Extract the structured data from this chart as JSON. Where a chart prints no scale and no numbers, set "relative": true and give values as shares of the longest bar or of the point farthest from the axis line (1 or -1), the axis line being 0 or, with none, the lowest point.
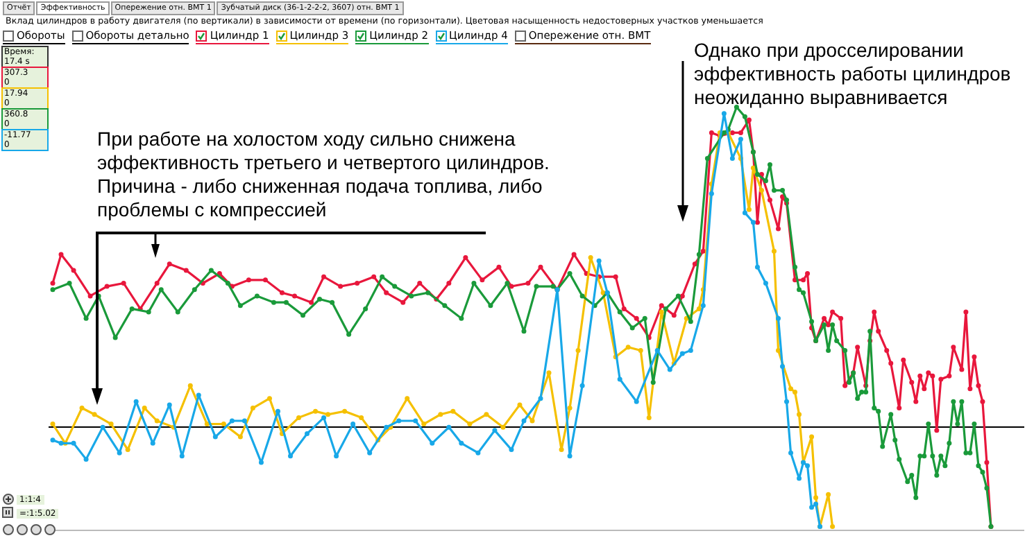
{
  "chart_data": {
    "type": "line",
    "relative": true,
    "title": "Вклад цилиндров в работу двигателя (по вертикали) в зависимости от времени (по горизонтали). Цветовая насыщенность недостоверных участков уменьшается",
    "categories": [
      null,
      null,
      null,
      null,
      null,
      null,
      null,
      null,
      null,
      null,
      null,
      null,
      null,
      null,
      null,
      null,
      null,
      null,
      null,
      null,
      null,
      null,
      null,
      null,
      null,
      null,
      null,
      null,
      null,
      null,
      null,
      null,
      null,
      null,
      null,
      null,
      null,
      null,
      null,
      null,
      null,
      null,
      null,
      null,
      null,
      null,
      null,
      null,
      null,
      null,
      null,
      null,
      null,
      null,
      null,
      null,
      null,
      null,
      null,
      null,
      null,
      null,
      null,
      null,
      null,
      null,
      null,
      null,
      null,
      null,
      null,
      null,
      null,
      null,
      null,
      null,
      null,
      null,
      null,
      null,
      null,
      null,
      null,
      null,
      null,
      null,
      null,
      null,
      null,
      null,
      null,
      null,
      null,
      null,
      null,
      null,
      null,
      null,
      null,
      null,
      null,
      null,
      null,
      null,
      null,
      null,
      null,
      null,
      null,
      null,
      null,
      null,
      null,
      null,
      null,
      null,
      null,
      null,
      null,
      null,
      null,
      null,
      null,
      null,
      null,
      null,
      null,
      null,
      null,
      null,
      null,
      null,
      null,
      null,
      null,
      null,
      null,
      null,
      null,
      null,
      null,
      null,
      null,
      null,
      null,
      null,
      null,
      null,
      null,
      null,
      null,
      null,
      null,
      null,
      null,
      null,
      null,
      null,
      null,
      null,
      null,
      null,
      null,
      null,
      null,
      null,
      null,
      null,
      null,
      null,
      null,
      null,
      null,
      null,
      null,
      null,
      null,
      null,
      null,
      null,
      null,
      null,
      null,
      null,
      null,
      null,
      null,
      null,
      null,
      null,
      null,
      null,
      null,
      null,
      null,
      null,
      null,
      null,
      null,
      null,
      null,
      null,
      null,
      null,
      null,
      null,
      null,
      null,
      null,
      null,
      null,
      null,
      null,
      null,
      null,
      null,
      null,
      null,
      null,
      null,
      null,
      null,
      null,
      null,
      null,
      null,
      null
    ],
    "marker": "circle",
    "line_style": "solid",
    "legend": "top left",
    "series": [
      {
        "name": "Цилиндр 1",
        "color": "#e8173c",
        "values": [
          null,
          0.45,
          null,
          0.54,
          null,
          null,
          0.49,
          null,
          null,
          null,
          0.41,
          null,
          null,
          null,
          0.44,
          null,
          null,
          null,
          0.45,
          null,
          null,
          null,
          0.37,
          null,
          null,
          null,
          0.45,
          null,
          null,
          0.51,
          null,
          null,
          null,
          0.49,
          null,
          null,
          null,
          0.45,
          null,
          null,
          null,
          0.48,
          null,
          null,
          0.44,
          null,
          null,
          null,
          0.46,
          null,
          null,
          null,
          0.46,
          null,
          null,
          null,
          0.42,
          null,
          null,
          0.41,
          null,
          null,
          null,
          0.39,
          null,
          null,
          0.47,
          null,
          null,
          null,
          0.44,
          null,
          null,
          null,
          0.45,
          null,
          null,
          null,
          0.47,
          null,
          null,
          0.42,
          null,
          null,
          null,
          0.39,
          null,
          null,
          null,
          0.45,
          null,
          null,
          null,
          0.4,
          null,
          null,
          0.45,
          null,
          null,
          null,
          0.53,
          null,
          null,
          null,
          0.46,
          null,
          null,
          null,
          0.5,
          null,
          null,
          0.44,
          null,
          null,
          null,
          0.45,
          null,
          null,
          0.5,
          null,
          null,
          null,
          0.43,
          null,
          null,
          null,
          0.54,
          null,
          null,
          0.48,
          null,
          null,
          0.47,
          null,
          null,
          null,
          0.47,
          null,
          0.37,
          null,
          null,
          0.34,
          null,
          null,
          0.28,
          null,
          null,
          0.38,
          null,
          null,
          0.35,
          null,
          0.41,
          null,
          null,
          0.51,
          null,
          0.55,
          null,
          0.92,
          null,
          0.91,
          null,
          null,
          0.92,
          null,
          0.92,
          null,
          0.96,
          0.86,
          0.64,
          0.79,
          null,
          0.71,
          null,
          0.62,
          0.72,
          0.7,
          null,
          0.46,
          null,
          0.46,
          0.48,
          0.31,
          0.27,
          null,
          0.34,
          0.32,
          0.36,
          null,
          0.34,
          0.13,
          null,
          0.17,
          0.25,
          null,
          0.13,
          0.27,
          0.36,
          0.3,
          null,
          0.24,
          0.2,
          null,
          0.06,
          0.21,
          null,
          0.14,
          0.08,
          0.16,
          0.12,
          0.17,
          0.16,
          -0.01,
          0.15,
          null,
          0.16,
          0.25,
          null,
          0.18,
          0.36,
          0.12,
          0.22,
          0.13,
          0.08,
          -0.11,
          -0.31
        ]
      },
      {
        "name": "Цилиндр 3",
        "color": "#f5c000",
        "values": [
          null,
          0.01,
          null,
          null,
          -0.05,
          null,
          null,
          null,
          0.06,
          null,
          null,
          0.04,
          null,
          null,
          null,
          0.01,
          null,
          null,
          null,
          -0.07,
          null,
          null,
          null,
          0.06,
          null,
          null,
          0.02,
          null,
          null,
          null,
          0.0,
          null,
          null,
          null,
          0.13,
          null,
          null,
          null,
          0.01,
          null,
          null,
          null,
          0.01,
          null,
          null,
          null,
          -0.03,
          null,
          null,
          0.06,
          null,
          null,
          null,
          0.09,
          null,
          null,
          -0.02,
          null,
          null,
          null,
          0.03,
          null,
          null,
          null,
          0.05,
          null,
          null,
          0.04,
          null,
          null,
          null,
          0.05,
          null,
          null,
          null,
          0.03,
          null,
          null,
          null,
          -0.04,
          null,
          null,
          0.0,
          null,
          null,
          null,
          0.09,
          null,
          null,
          null,
          0.01,
          null,
          null,
          null,
          0.04,
          null,
          null,
          0.05,
          null,
          null,
          null,
          0.01,
          null,
          null,
          null,
          0.04,
          null,
          null,
          null,
          0.0,
          null,
          null,
          null,
          0.07,
          null,
          null,
          0.02,
          null,
          null,
          null,
          0.17,
          null,
          null,
          -0.07,
          null,
          0.06,
          null,
          0.24,
          null,
          null,
          0.53,
          null,
          null,
          0.42,
          null,
          null,
          0.22,
          null,
          null,
          0.25,
          null,
          null,
          0.24,
          null,
          0.03,
          null,
          null,
          0.36,
          null,
          null,
          0.2,
          null,
          null,
          0.34,
          null,
          null,
          0.37,
          0.43,
          null,
          0.76,
          null,
          0.92,
          null,
          0.92,
          null,
          null,
          0.84,
          null,
          0.68,
          0.81,
          null,
          0.74,
          null,
          null,
          0.55,
          0.24,
          null,
          null,
          0.12,
          0.11,
          0.04,
          -0.11,
          null,
          -0.03,
          -0.22,
          -0.31,
          null,
          -0.21,
          -0.31,
          null,
          null,
          null,
          null,
          null,
          null,
          null,
          null,
          null,
          null,
          null,
          null,
          null,
          null,
          null,
          null,
          null,
          null,
          null,
          null,
          null,
          null,
          null,
          null,
          null,
          null,
          null,
          null,
          null,
          null,
          null,
          null,
          null,
          null,
          null,
          null,
          null,
          null
        ]
      },
      {
        "name": "Цилиндр 2",
        "color": "#1a9a3a",
        "values": [
          null,
          0.43,
          null,
          null,
          null,
          0.45,
          null,
          null,
          null,
          0.34,
          null,
          null,
          0.41,
          null,
          null,
          null,
          0.28,
          null,
          null,
          null,
          0.37,
          null,
          null,
          null,
          0.36,
          null,
          null,
          0.43,
          null,
          null,
          null,
          0.36,
          null,
          null,
          null,
          0.43,
          null,
          null,
          null,
          0.49,
          null,
          null,
          null,
          0.45,
          null,
          null,
          0.38,
          null,
          null,
          null,
          0.41,
          null,
          null,
          null,
          0.39,
          null,
          null,
          0.39,
          null,
          null,
          null,
          0.35,
          null,
          null,
          null,
          0.4,
          null,
          null,
          0.39,
          null,
          null,
          null,
          0.29,
          null,
          null,
          null,
          0.37,
          null,
          null,
          null,
          0.47,
          null,
          null,
          0.44,
          null,
          null,
          null,
          0.41,
          null,
          null,
          null,
          0.42,
          null,
          null,
          null,
          0.38,
          null,
          null,
          null,
          0.34,
          null,
          null,
          0.45,
          null,
          null,
          null,
          0.38,
          null,
          null,
          null,
          0.45,
          null,
          null,
          null,
          0.3,
          null,
          null,
          0.44,
          null,
          null,
          null,
          0.44,
          0.43,
          null,
          null,
          0.48,
          null,
          null,
          0.41,
          null,
          null,
          0.38,
          null,
          null,
          0.42,
          null,
          null,
          0.36,
          null,
          null,
          0.31,
          null,
          null,
          0.34,
          null,
          0.14,
          null,
          null,
          0.37,
          null,
          null,
          0.41,
          null,
          null,
          0.33,
          null,
          0.54,
          null,
          0.84,
          null,
          null,
          null,
          0.92,
          0.93,
          null,
          1.0,
          null,
          0.97,
          null,
          0.86,
          0.79,
          null,
          0.77,
          0.82,
          0.74,
          null,
          0.74,
          0.71,
          null,
          0.5,
          0.43,
          0.42,
          null,
          0.33,
          0.27,
          null,
          0.32,
          0.24,
          0.32,
          0.27,
          null,
          0.24,
          0.14,
          0.17,
          0.09,
          0.11,
          0.11,
          0.3,
          0.06,
          0.05,
          -0.06,
          null,
          0.04,
          -0.04,
          -0.1,
          null,
          -0.17,
          -0.15,
          -0.22,
          -0.09,
          -0.09,
          0.01,
          -0.09,
          -0.15,
          -0.09,
          -0.12,
          -0.05,
          0.08,
          0.01,
          0.08,
          -0.08,
          -0.08,
          0.01,
          -0.12,
          -0.14,
          -0.19,
          -0.31
        ]
      },
      {
        "name": "Цилиндр 4",
        "color": "#18a8e8",
        "values": [
          null,
          -0.04,
          null,
          -0.05,
          null,
          null,
          -0.05,
          null,
          null,
          -0.1,
          null,
          null,
          null,
          0.0,
          null,
          null,
          null,
          -0.08,
          null,
          null,
          null,
          0.08,
          null,
          null,
          null,
          -0.05,
          null,
          null,
          null,
          0.07,
          null,
          null,
          -0.09,
          null,
          null,
          null,
          0.1,
          null,
          null,
          null,
          -0.03,
          null,
          null,
          null,
          0.02,
          null,
          null,
          0.02,
          null,
          null,
          null,
          -0.11,
          null,
          null,
          null,
          0.05,
          null,
          null,
          -0.09,
          null,
          null,
          null,
          -0.02,
          null,
          null,
          null,
          0.03,
          null,
          null,
          -0.09,
          null,
          null,
          null,
          0.01,
          null,
          null,
          null,
          -0.08,
          null,
          null,
          null,
          0.0,
          null,
          null,
          0.02,
          null,
          null,
          null,
          0.02,
          null,
          null,
          null,
          -0.05,
          null,
          null,
          null,
          0.0,
          null,
          null,
          -0.05,
          null,
          null,
          null,
          -0.08,
          null,
          null,
          null,
          -0.01,
          null,
          null,
          null,
          -0.07,
          null,
          null,
          0.02,
          null,
          null,
          null,
          0.09,
          null,
          null,
          null,
          0.43,
          null,
          null,
          -0.09,
          null,
          null,
          0.13,
          null,
          null,
          null,
          0.52,
          null,
          0.42,
          null,
          null,
          0.15,
          null,
          null,
          null,
          0.08,
          null,
          null,
          null,
          null,
          0.24,
          null,
          null,
          0.18,
          null,
          null,
          0.23,
          null,
          0.24,
          null,
          null,
          0.38,
          null,
          0.73,
          null,
          null,
          0.98,
          null,
          0.84,
          null,
          0.9,
          0.67,
          null,
          0.64,
          0.5,
          null,
          0.45,
          null,
          null,
          0.34,
          0.19,
          0.08,
          -0.08,
          null,
          -0.16,
          -0.11,
          -0.12,
          -0.25,
          -0.24,
          -0.31,
          null,
          null,
          null,
          null,
          null,
          null,
          null,
          null,
          null,
          null,
          null,
          null,
          null,
          null,
          null,
          null,
          null,
          null,
          null,
          null,
          null,
          null,
          null,
          null,
          null,
          null,
          null,
          null,
          null,
          null,
          null,
          null,
          null,
          null,
          null,
          null,
          null,
          null,
          null,
          null,
          null
        ]
      }
    ],
    "annotations": [
      "Отчёт",
      "Эффективность",
      "Опережение отн. ВМТ 1",
      "Зубчатый диск (36-1-2-2-2, 3607) отн. ВМТ 1",
      "Обороты",
      "Обороты детально",
      "Опережение отн. ВМТ",
      "Время:",
      "17.4 s",
      "307.3",
      "0",
      "17.94",
      "0",
      "360.8",
      "0",
      "-11.77",
      "0",
      "1:1:4",
      "=:1:5.02",
      "При работе на холостом ходу сильно снижена эффективность третьего и четвертого цилиндров. Причина - либо сниженная подача топлива, либо проблемы с компрессией",
      "Однако при дросселировании эффективность работы цилиндров неожиданно выравнивается"
    ]
  }
}
